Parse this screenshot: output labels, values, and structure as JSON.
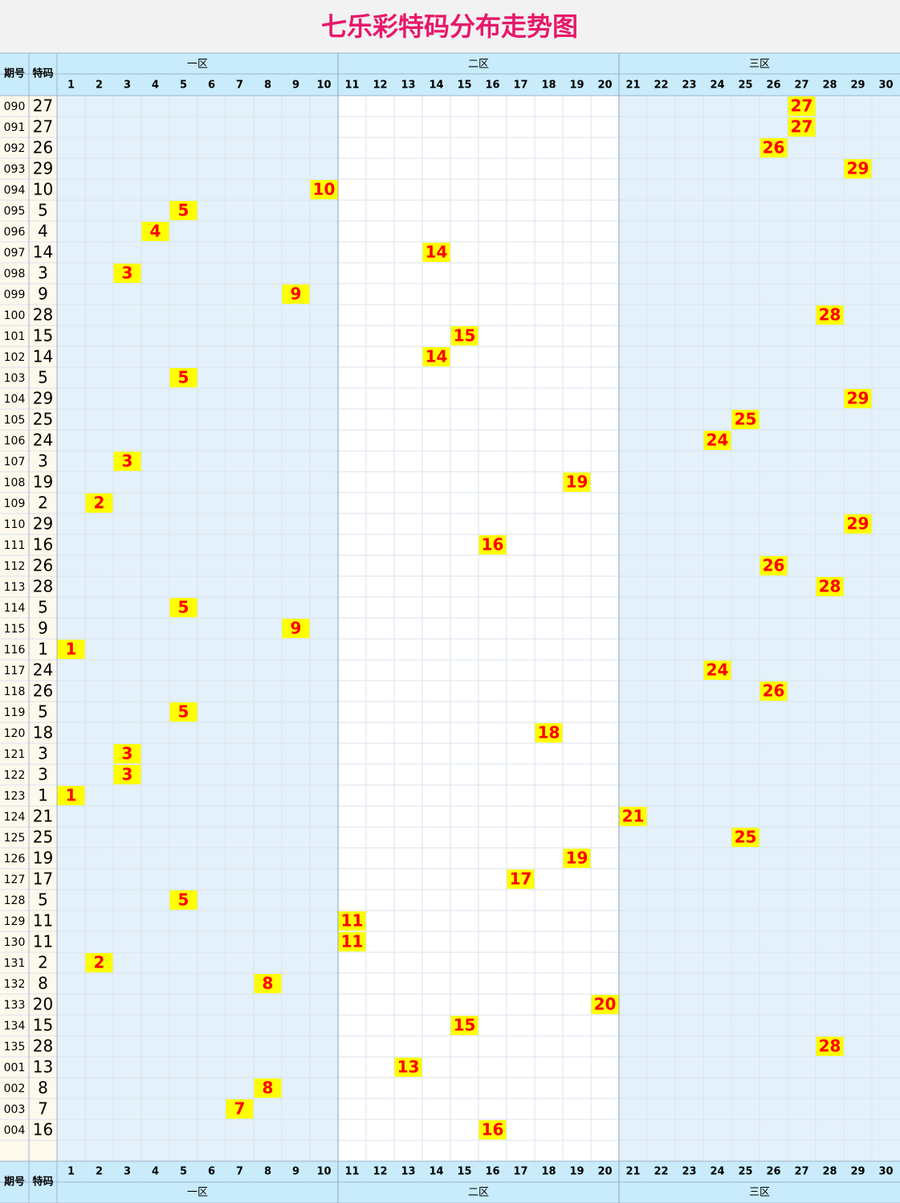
{
  "title": "七乐彩特码分布走势图",
  "header": {
    "issue": "期号",
    "number": "特码"
  },
  "zones": [
    {
      "name": "一区",
      "columns": [
        1,
        2,
        3,
        4,
        5,
        6,
        7,
        8,
        9,
        10
      ]
    },
    {
      "name": "二区",
      "columns": [
        11,
        12,
        13,
        14,
        15,
        16,
        17,
        18,
        19,
        20
      ]
    },
    {
      "name": "三区",
      "columns": [
        21,
        22,
        23,
        24,
        25,
        26,
        27,
        28,
        29,
        30
      ]
    }
  ],
  "rows": [
    {
      "issue": "090",
      "number": 27
    },
    {
      "issue": "091",
      "number": 27
    },
    {
      "issue": "092",
      "number": 26
    },
    {
      "issue": "093",
      "number": 29
    },
    {
      "issue": "094",
      "number": 10
    },
    {
      "issue": "095",
      "number": 5
    },
    {
      "issue": "096",
      "number": 4
    },
    {
      "issue": "097",
      "number": 14
    },
    {
      "issue": "098",
      "number": 3
    },
    {
      "issue": "099",
      "number": 9
    },
    {
      "issue": "100",
      "number": 28
    },
    {
      "issue": "101",
      "number": 15
    },
    {
      "issue": "102",
      "number": 14
    },
    {
      "issue": "103",
      "number": 5
    },
    {
      "issue": "104",
      "number": 29
    },
    {
      "issue": "105",
      "number": 25
    },
    {
      "issue": "106",
      "number": 24
    },
    {
      "issue": "107",
      "number": 3
    },
    {
      "issue": "108",
      "number": 19
    },
    {
      "issue": "109",
      "number": 2
    },
    {
      "issue": "110",
      "number": 29
    },
    {
      "issue": "111",
      "number": 16
    },
    {
      "issue": "112",
      "number": 26
    },
    {
      "issue": "113",
      "number": 28
    },
    {
      "issue": "114",
      "number": 5
    },
    {
      "issue": "115",
      "number": 9
    },
    {
      "issue": "116",
      "number": 1
    },
    {
      "issue": "117",
      "number": 24
    },
    {
      "issue": "118",
      "number": 26
    },
    {
      "issue": "119",
      "number": 5
    },
    {
      "issue": "120",
      "number": 18
    },
    {
      "issue": "121",
      "number": 3
    },
    {
      "issue": "122",
      "number": 3
    },
    {
      "issue": "123",
      "number": 1
    },
    {
      "issue": "124",
      "number": 21
    },
    {
      "issue": "125",
      "number": 25
    },
    {
      "issue": "126",
      "number": 19
    },
    {
      "issue": "127",
      "number": 17
    },
    {
      "issue": "128",
      "number": 5
    },
    {
      "issue": "129",
      "number": 11
    },
    {
      "issue": "130",
      "number": 11
    },
    {
      "issue": "131",
      "number": 2
    },
    {
      "issue": "132",
      "number": 8
    },
    {
      "issue": "133",
      "number": 20
    },
    {
      "issue": "134",
      "number": 15
    },
    {
      "issue": "135",
      "number": 28
    },
    {
      "issue": "001",
      "number": 13
    },
    {
      "issue": "002",
      "number": 8
    },
    {
      "issue": "003",
      "number": 7
    },
    {
      "issue": "004",
      "number": 16
    }
  ]
}
